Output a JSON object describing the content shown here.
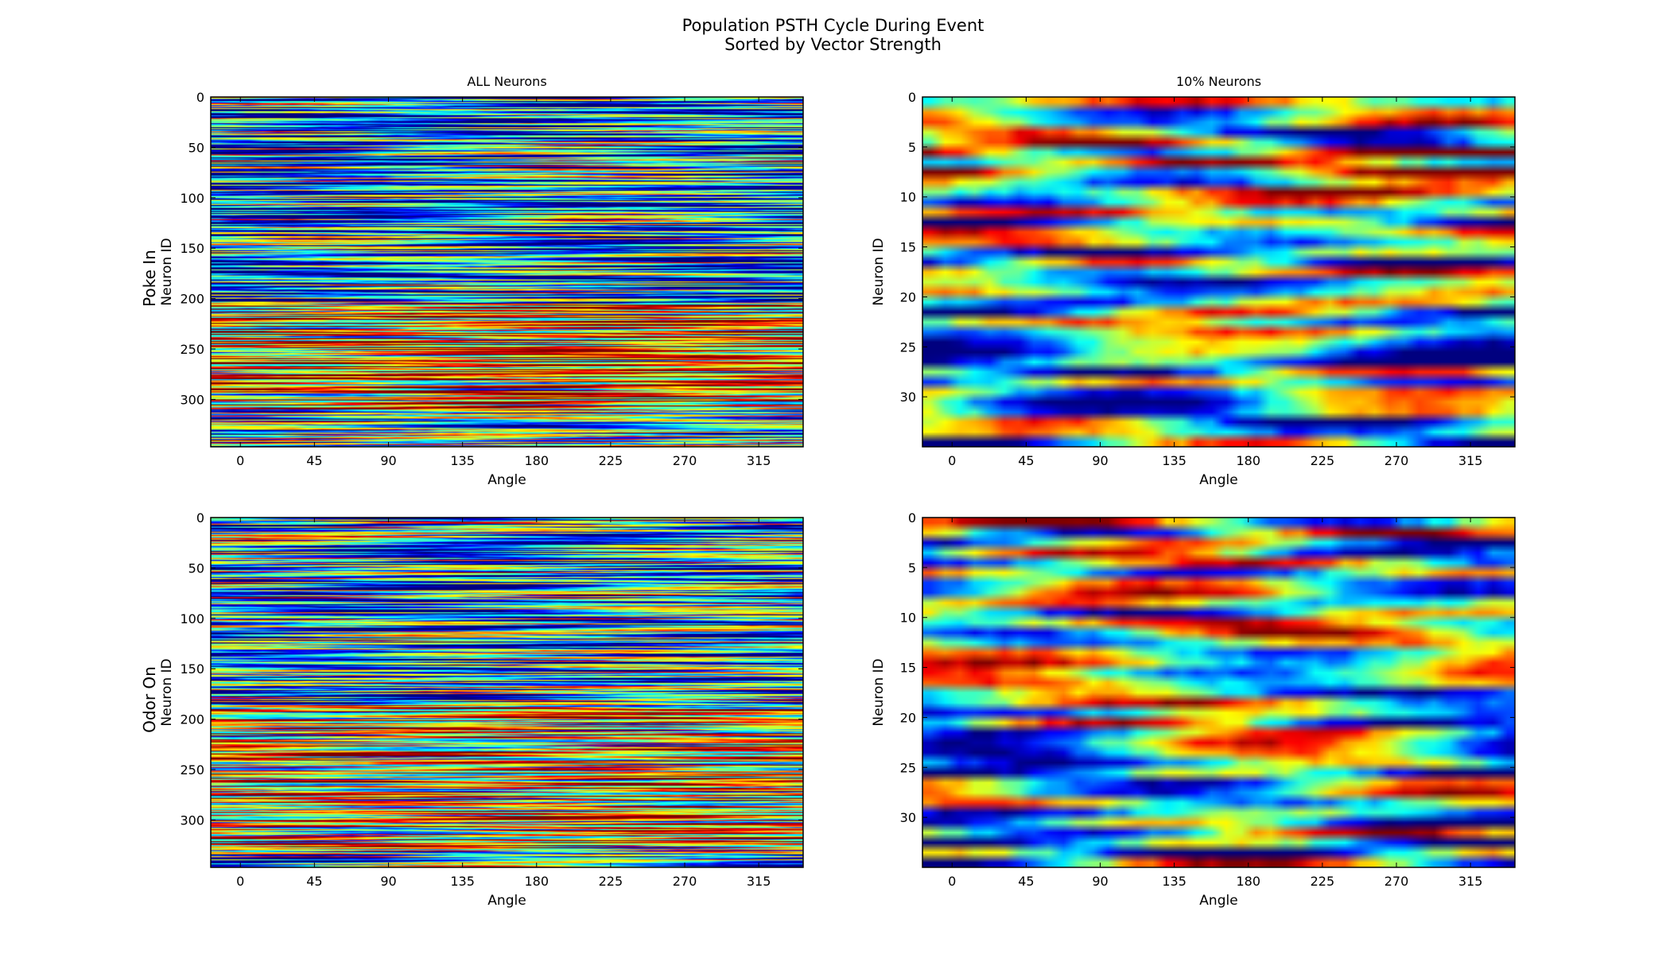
{
  "figure": {
    "title_line1": "Population PSTH Cycle During Event",
    "title_line2": "Sorted by Vector Strength",
    "row_labels": [
      "Poke In",
      "Odor On"
    ]
  },
  "colormap": {
    "name": "jet",
    "stops": [
      "#00007f",
      "#0000ff",
      "#007fff",
      "#00ffff",
      "#7fff7f",
      "#ffff00",
      "#ff7f00",
      "#ff0000",
      "#7f0000"
    ]
  },
  "chart_data": [
    {
      "type": "heatmap",
      "row": "Poke In",
      "title": "ALL Neurons",
      "xlabel": "Angle",
      "ylabel": "Neuron ID",
      "xlim": [
        -18,
        342
      ],
      "ylim": [
        0,
        347
      ],
      "xticks": [
        0,
        45,
        90,
        135,
        180,
        225,
        270,
        315
      ],
      "yticks": [
        0,
        50,
        100,
        150,
        200,
        250,
        300
      ],
      "n_rows": 347,
      "n_cols": 40,
      "row_bands": [
        {
          "from": 0,
          "to": 205,
          "typical_level": 0.28
        },
        {
          "from": 205,
          "to": 310,
          "typical_level": 0.72
        },
        {
          "from": 310,
          "to": 347,
          "typical_level": 0.42
        }
      ]
    },
    {
      "type": "heatmap",
      "row": "Poke In",
      "title": "10% Neurons",
      "xlabel": "Angle",
      "ylabel": "Neuron ID",
      "xlim": [
        -18,
        342
      ],
      "ylim": [
        0,
        35
      ],
      "xticks": [
        0,
        45,
        90,
        135,
        180,
        225,
        270,
        315
      ],
      "yticks": [
        0,
        5,
        10,
        15,
        20,
        25,
        30
      ],
      "n_rows": 35,
      "n_cols": 40,
      "row_bands": [
        {
          "from": 0,
          "to": 12,
          "typical_level": 0.55
        },
        {
          "from": 12,
          "to": 25,
          "typical_level": 0.45
        },
        {
          "from": 25,
          "to": 35,
          "typical_level": 0.35
        }
      ]
    },
    {
      "type": "heatmap",
      "row": "Odor On",
      "title": "",
      "xlabel": "Angle",
      "ylabel": "Neuron ID",
      "xlim": [
        -18,
        342
      ],
      "ylim": [
        0,
        347
      ],
      "xticks": [
        0,
        45,
        90,
        135,
        180,
        225,
        270,
        315
      ],
      "yticks": [
        0,
        50,
        100,
        150,
        200,
        250,
        300
      ],
      "n_rows": 347,
      "n_cols": 40,
      "row_bands": [
        {
          "from": 0,
          "to": 185,
          "typical_level": 0.32
        },
        {
          "from": 185,
          "to": 330,
          "typical_level": 0.66
        },
        {
          "from": 330,
          "to": 347,
          "typical_level": 0.35
        }
      ]
    },
    {
      "type": "heatmap",
      "row": "Odor On",
      "title": "",
      "xlabel": "Angle",
      "ylabel": "Neuron ID",
      "xlim": [
        -18,
        342
      ],
      "ylim": [
        0,
        35
      ],
      "xticks": [
        0,
        45,
        90,
        135,
        180,
        225,
        270,
        315
      ],
      "yticks": [
        0,
        5,
        10,
        15,
        20,
        25,
        30
      ],
      "n_rows": 35,
      "n_cols": 40,
      "row_bands": [
        {
          "from": 0,
          "to": 12,
          "typical_level": 0.55
        },
        {
          "from": 12,
          "to": 25,
          "typical_level": 0.5
        },
        {
          "from": 25,
          "to": 35,
          "typical_level": 0.38
        }
      ]
    }
  ]
}
